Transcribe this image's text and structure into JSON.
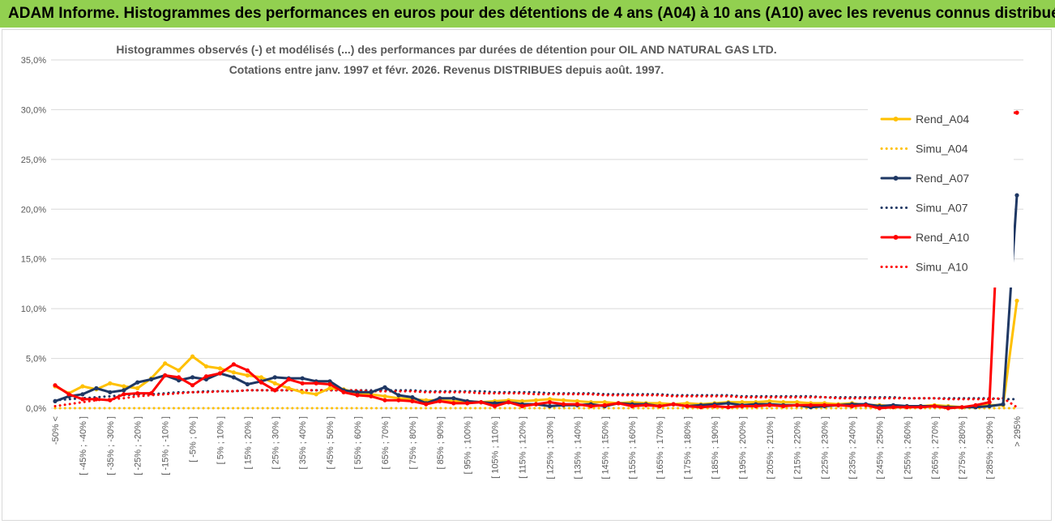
{
  "banner": {
    "title": "ADAM Informe. Histogrammes des performances en euros pour des détentions de 4 ans (A04) à 10 ans (A10) avec les revenus connus distribués"
  },
  "chart_data": {
    "type": "line",
    "title_line1": "Histogrammes observés (-) et modélisés (...) des performances par durées de détention pour OIL AND NATURAL GAS LTD.",
    "title_line2": "Cotations entre janv. 1997 et févr. 2026. Revenus DISTRIBUES depuis août. 1997.",
    "xlabel": "",
    "ylabel": "",
    "ylim": [
      0,
      35
    ],
    "y_ticks": [
      "0,0%",
      "5,0%",
      "10,0%",
      "15,0%",
      "20,0%",
      "25,0%",
      "30,0%",
      "35,0%"
    ],
    "grid": true,
    "legend_position": "right",
    "categories": [
      "-50% <",
      "[ -50% ; -45% ]",
      "[ -45% ; -40% ]",
      "[ -40% ; -35% ]",
      "[ -35% ; -30% ]",
      "[ -30% ; -25% ]",
      "[ -25% ; -20% ]",
      "[ -20% ; -15% ]",
      "[ -15% ; -10% ]",
      "[ -10% ; -5% ]",
      "[ -5% ; 0% ]",
      "[ 0% ; 5% ]",
      "[ 5% ; 10% ]",
      "[ 10% ; 15% ]",
      "[ 15% ; 20% ]",
      "[ 20% ; 25% ]",
      "[ 25% ; 30% ]",
      "[ 30% ; 35% ]",
      "[ 35% ; 40% ]",
      "[ 40% ; 45% ]",
      "[ 45% ; 50% ]",
      "[ 50% ; 55% ]",
      "[ 55% ; 60% ]",
      "[ 60% ; 65% ]",
      "[ 65% ; 70% ]",
      "[ 70% ; 75% ]",
      "[ 75% ; 80% ]",
      "[ 80% ; 85% ]",
      "[ 85% ; 90% ]",
      "[ 90% ; 95% ]",
      "[ 95% ; 100% ]",
      "[ 100% ; 105% ]",
      "[ 105% ; 110% ]",
      "[ 110% ; 115% ]",
      "[ 115% ; 120% ]",
      "[ 120% ; 125% ]",
      "[ 125% ; 130% ]",
      "[ 130% ; 135% ]",
      "[ 135% ; 140% ]",
      "[ 140% ; 145% ]",
      "[ 145% ; 150% ]",
      "[ 150% ; 155% ]",
      "[ 155% ; 160% ]",
      "[ 160% ; 165% ]",
      "[ 165% ; 170% ]",
      "[ 170% ; 175% ]",
      "[ 175% ; 180% ]",
      "[ 180% ; 185% ]",
      "[ 185% ; 190% ]",
      "[ 190% ; 195% ]",
      "[ 195% ; 200% ]",
      "[ 200% ; 205% ]",
      "[ 205% ; 210% ]",
      "[ 210% ; 215% ]",
      "[ 215% ; 220% ]",
      "[ 220% ; 225% ]",
      "[ 225% ; 230% ]",
      "[ 230% ; 235% ]",
      "[ 235% ; 240% ]",
      "[ 240% ; 245% ]",
      "[ 245% ; 250% ]",
      "[ 250% ; 255% ]",
      "[ 255% ; 260% ]",
      "[ 260% ; 265% ]",
      "[ 265% ; 270% ]",
      "[ 270% ; 275% ]",
      "[ 275% ; 280% ]",
      "[ 280% ; 285% ]",
      "[ 285% ; 290% ]",
      "[ 290% ; 295% ]",
      "> 295%"
    ],
    "series": [
      {
        "name": "Rend_A04",
        "color": "#ffc000",
        "style": "solid",
        "values": [
          2.2,
          1.5,
          2.2,
          1.9,
          2.5,
          2.2,
          2.0,
          3.0,
          4.5,
          3.8,
          5.2,
          4.2,
          4.0,
          3.6,
          3.3,
          3.1,
          2.5,
          2.0,
          1.6,
          1.4,
          2.0,
          1.9,
          1.5,
          1.4,
          1.2,
          1.0,
          0.9,
          0.8,
          0.8,
          0.7,
          0.7,
          0.6,
          0.7,
          0.8,
          0.7,
          0.8,
          0.9,
          0.8,
          0.7,
          0.6,
          0.6,
          0.5,
          0.6,
          0.5,
          0.5,
          0.4,
          0.5,
          0.4,
          0.5,
          0.6,
          0.6,
          0.6,
          0.7,
          0.6,
          0.6,
          0.5,
          0.5,
          0.4,
          0.5,
          0.3,
          0.3,
          0.2,
          0.2,
          0.2,
          0.3,
          0.2,
          0.1,
          0.2,
          0.3,
          0.3,
          10.8
        ]
      },
      {
        "name": "Simu_A04",
        "color": "#ffc000",
        "style": "dotted",
        "values": [
          0.0,
          0.0,
          0.0,
          0.0,
          0.0,
          0.0,
          0.0,
          0.0,
          0.0,
          0.0,
          0.0,
          0.0,
          0.0,
          0.0,
          0.0,
          0.0,
          0.0,
          0.0,
          0.0,
          0.0,
          0.0,
          0.0,
          0.0,
          0.0,
          0.0,
          0.0,
          0.0,
          0.0,
          0.0,
          0.0,
          0.0,
          0.0,
          0.0,
          0.0,
          0.0,
          0.0,
          0.0,
          0.0,
          0.0,
          0.0,
          0.0,
          0.0,
          0.0,
          0.0,
          0.0,
          0.0,
          0.0,
          0.0,
          0.0,
          0.0,
          0.0,
          0.0,
          0.0,
          0.0,
          0.0,
          0.0,
          0.0,
          0.0,
          0.0,
          0.0,
          0.0,
          0.0,
          0.0,
          0.0,
          0.0,
          0.0,
          0.0,
          0.0,
          0.0,
          0.0,
          0.0
        ]
      },
      {
        "name": "Rend_A07",
        "color": "#1f3864",
        "style": "solid",
        "values": [
          0.7,
          1.2,
          1.4,
          2.0,
          1.6,
          1.8,
          2.6,
          2.9,
          3.3,
          2.8,
          3.1,
          2.9,
          3.5,
          3.1,
          2.4,
          2.7,
          3.1,
          3.0,
          3.0,
          2.7,
          2.7,
          1.8,
          1.6,
          1.6,
          2.1,
          1.3,
          1.1,
          0.5,
          1.0,
          1.0,
          0.7,
          0.6,
          0.5,
          0.6,
          0.4,
          0.4,
          0.2,
          0.3,
          0.3,
          0.4,
          0.2,
          0.5,
          0.4,
          0.4,
          0.2,
          0.4,
          0.2,
          0.3,
          0.4,
          0.5,
          0.3,
          0.4,
          0.4,
          0.3,
          0.3,
          0.1,
          0.2,
          0.3,
          0.4,
          0.4,
          0.2,
          0.3,
          0.2,
          0.2,
          0.2,
          0.1,
          0.1,
          0.1,
          0.2,
          0.4,
          21.4
        ]
      },
      {
        "name": "Simu_A07",
        "color": "#1f3864",
        "style": "dotted",
        "values": [
          0.8,
          0.9,
          1.0,
          1.1,
          1.2,
          1.3,
          1.4,
          1.4,
          1.5,
          1.6,
          1.6,
          1.7,
          1.7,
          1.7,
          1.8,
          1.8,
          1.8,
          1.8,
          1.8,
          1.8,
          1.8,
          1.8,
          1.8,
          1.8,
          1.8,
          1.8,
          1.8,
          1.7,
          1.7,
          1.7,
          1.7,
          1.7,
          1.6,
          1.6,
          1.6,
          1.6,
          1.5,
          1.5,
          1.5,
          1.5,
          1.4,
          1.4,
          1.4,
          1.4,
          1.4,
          1.3,
          1.3,
          1.3,
          1.3,
          1.3,
          1.2,
          1.2,
          1.2,
          1.2,
          1.2,
          1.2,
          1.1,
          1.1,
          1.1,
          1.1,
          1.1,
          1.1,
          1.0,
          1.0,
          1.0,
          1.0,
          1.0,
          1.0,
          1.0,
          0.9,
          0.9
        ]
      },
      {
        "name": "Rend_A10",
        "color": "#ff0000",
        "style": "solid",
        "values": [
          2.3,
          1.4,
          0.9,
          0.9,
          0.8,
          1.4,
          1.5,
          1.5,
          3.3,
          3.1,
          2.3,
          3.2,
          3.5,
          4.4,
          3.8,
          2.6,
          1.8,
          2.9,
          2.5,
          2.5,
          2.4,
          1.6,
          1.3,
          1.2,
          0.8,
          0.8,
          0.7,
          0.4,
          0.7,
          0.5,
          0.5,
          0.6,
          0.2,
          0.6,
          0.2,
          0.4,
          0.6,
          0.4,
          0.4,
          0.2,
          0.3,
          0.5,
          0.2,
          0.3,
          0.2,
          0.4,
          0.2,
          0.1,
          0.2,
          0.1,
          0.2,
          0.2,
          0.3,
          0.2,
          0.3,
          0.3,
          0.3,
          0.3,
          0.2,
          0.3,
          0.0,
          0.1,
          0.1,
          0.1,
          0.2,
          0.0,
          0.1,
          0.3,
          0.6,
          29.7,
          29.7
        ]
      },
      {
        "name": "Simu_A10",
        "color": "#ff0000",
        "style": "dotted",
        "values": [
          0.2,
          0.4,
          0.6,
          0.8,
          0.9,
          1.0,
          1.2,
          1.3,
          1.4,
          1.5,
          1.6,
          1.6,
          1.7,
          1.7,
          1.8,
          1.8,
          1.8,
          1.8,
          1.8,
          1.8,
          1.8,
          1.8,
          1.8,
          1.7,
          1.7,
          1.7,
          1.7,
          1.6,
          1.6,
          1.6,
          1.6,
          1.5,
          1.5,
          1.5,
          1.5,
          1.4,
          1.4,
          1.4,
          1.4,
          1.4,
          1.3,
          1.3,
          1.3,
          1.3,
          1.3,
          1.2,
          1.2,
          1.2,
          1.2,
          1.2,
          1.1,
          1.1,
          1.1,
          1.1,
          1.1,
          1.1,
          1.1,
          1.0,
          1.0,
          1.0,
          1.0,
          1.0,
          1.0,
          1.0,
          1.0,
          0.9,
          0.9,
          0.9,
          0.9,
          1.0,
          0.1
        ]
      }
    ]
  }
}
